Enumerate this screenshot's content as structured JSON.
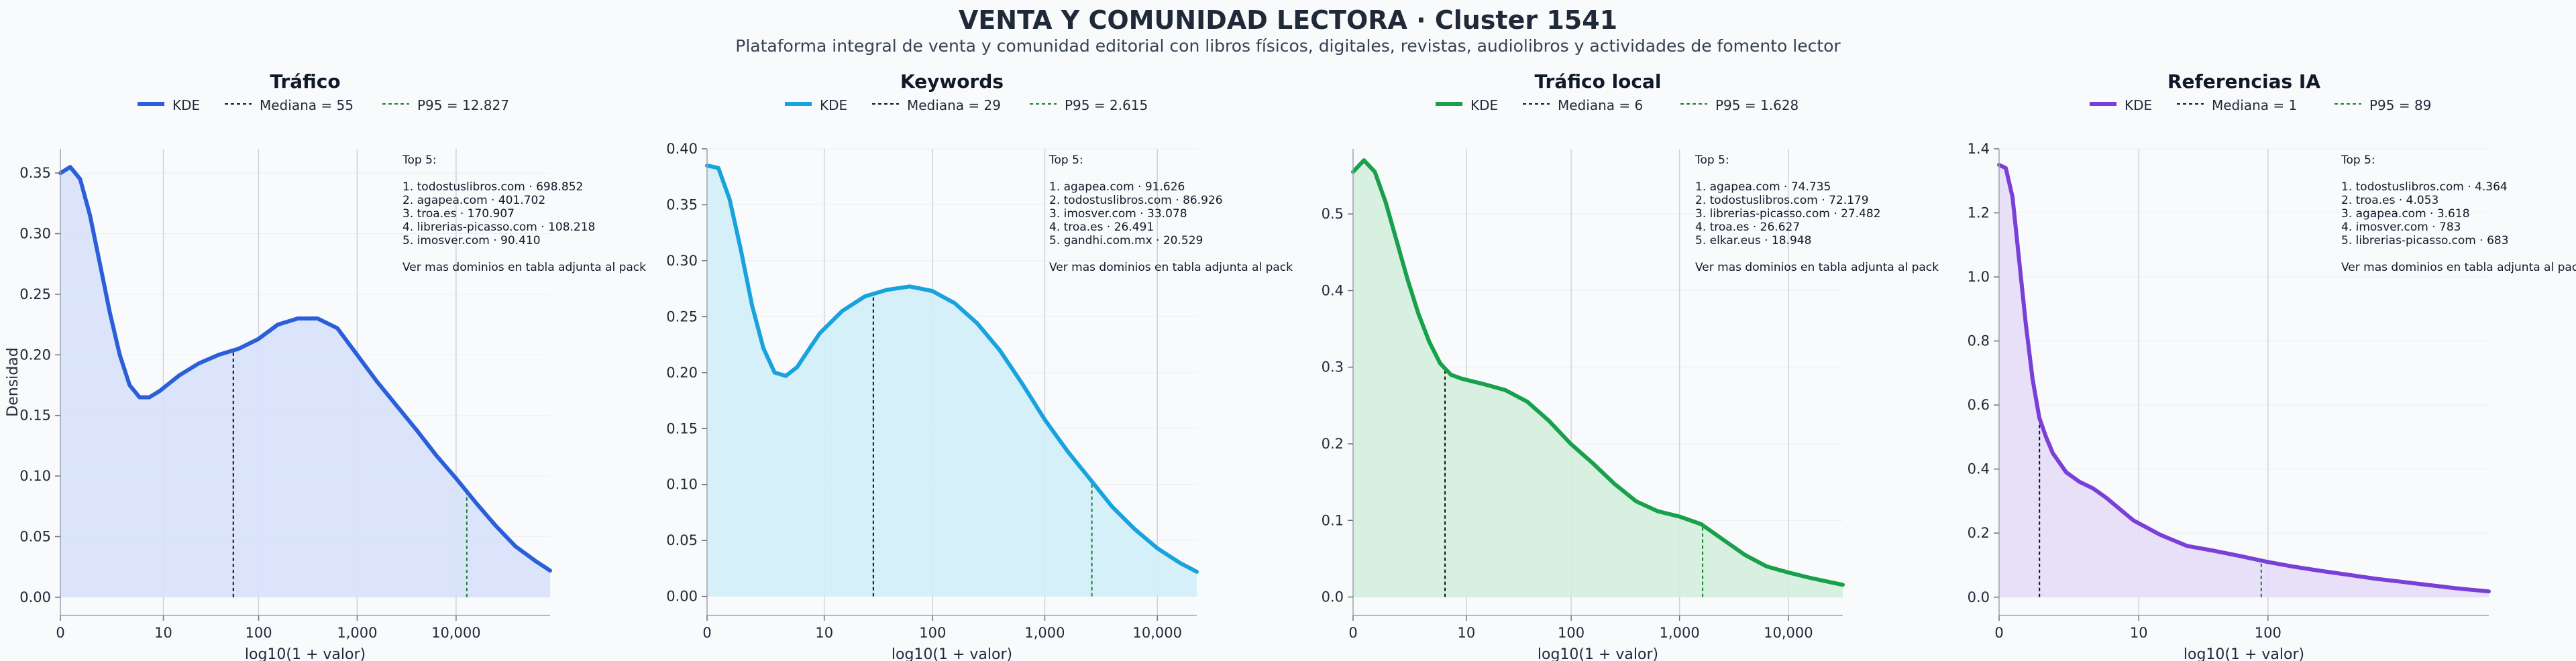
{
  "title": "VENTA Y COMUNIDAD LECTORA · Cluster 1541",
  "subtitle": "Plataforma integral de venta y comunidad editorial con libros físicos, digitales, revistas, audiolibros y actividades de fomento lector",
  "chart_data": [
    {
      "type": "area",
      "title": "Tráfico",
      "xlabel": "log10(1 + valor)",
      "ylabel": "Densidad",
      "color": "#2b5fd9",
      "fill": "#d7e1fb",
      "xlim": [
        0,
        4.95
      ],
      "ylim": [
        -0.015,
        0.37
      ],
      "yticks": [
        0,
        0.05,
        0.1,
        0.15,
        0.2,
        0.25,
        0.3,
        0.35
      ],
      "yticklabels": [
        "0.00",
        "0.05",
        "0.10",
        "0.15",
        "0.20",
        "0.25",
        "0.30",
        "0.35"
      ],
      "xticks": [
        0,
        1.041,
        2.004,
        3.0,
        4.0
      ],
      "xticklabels": [
        "0",
        "10",
        "100",
        "1,000",
        "10,000"
      ],
      "legend": [
        "KDE",
        "Mediana = 55",
        "P95 = 12.827"
      ],
      "median_x": 1.748,
      "p95_x": 4.108,
      "kde": {
        "x": [
          0,
          0.1,
          0.2,
          0.3,
          0.4,
          0.5,
          0.6,
          0.7,
          0.8,
          0.9,
          1.0,
          1.2,
          1.4,
          1.6,
          1.8,
          2.0,
          2.2,
          2.4,
          2.6,
          2.8,
          3.0,
          3.2,
          3.4,
          3.6,
          3.8,
          4.0,
          4.2,
          4.4,
          4.6,
          4.8,
          4.95
        ],
        "y": [
          0.35,
          0.355,
          0.345,
          0.315,
          0.275,
          0.235,
          0.2,
          0.175,
          0.165,
          0.165,
          0.17,
          0.183,
          0.193,
          0.2,
          0.205,
          0.213,
          0.225,
          0.23,
          0.23,
          0.222,
          0.2,
          0.178,
          0.158,
          0.138,
          0.117,
          0.098,
          0.078,
          0.059,
          0.042,
          0.03,
          0.022
        ]
      },
      "annotation": [
        "Top 5:",
        "",
        "1. todostuslibros.com · 698.852",
        "2. agapea.com · 401.702",
        "3. troa.es · 170.907",
        "4. librerias-picasso.com · 108.218",
        "5. imosver.com · 90.410",
        "",
        "Ver mas dominios en tabla adjunta al pack"
      ]
    },
    {
      "type": "area",
      "title": "Keywords",
      "xlabel": "log10(1 + valor)",
      "ylabel": "",
      "color": "#19a3dc",
      "fill": "#d2eefa",
      "xlim": [
        0,
        4.35
      ],
      "ylim": [
        -0.017,
        0.4
      ],
      "yticks": [
        0,
        0.05,
        0.1,
        0.15,
        0.2,
        0.25,
        0.3,
        0.35,
        0.4
      ],
      "yticklabels": [
        "0.00",
        "0.05",
        "0.10",
        "0.15",
        "0.20",
        "0.25",
        "0.30",
        "0.35",
        "0.40"
      ],
      "xticks": [
        0,
        1.041,
        2.004,
        3.0,
        4.0
      ],
      "xticklabels": [
        "0",
        "10",
        "100",
        "1,000",
        "10,000"
      ],
      "legend": [
        "KDE",
        "Mediana = 29",
        "P95 = 2.615"
      ],
      "median_x": 1.477,
      "p95_x": 3.418,
      "kde": {
        "x": [
          0,
          0.1,
          0.2,
          0.3,
          0.4,
          0.5,
          0.6,
          0.7,
          0.8,
          0.9,
          1.0,
          1.2,
          1.4,
          1.6,
          1.8,
          2.0,
          2.2,
          2.4,
          2.6,
          2.8,
          3.0,
          3.2,
          3.4,
          3.6,
          3.8,
          4.0,
          4.2,
          4.35
        ],
        "y": [
          0.385,
          0.383,
          0.355,
          0.31,
          0.26,
          0.222,
          0.2,
          0.197,
          0.205,
          0.22,
          0.235,
          0.255,
          0.268,
          0.274,
          0.277,
          0.273,
          0.262,
          0.244,
          0.22,
          0.19,
          0.158,
          0.13,
          0.105,
          0.08,
          0.06,
          0.043,
          0.03,
          0.022
        ]
      },
      "annotation": [
        "Top 5:",
        "",
        "1. agapea.com · 91.626",
        "2. todostuslibros.com · 86.926",
        "3. imosver.com · 33.078",
        "4. troa.es · 26.491",
        "5. gandhi.com.mx · 20.529",
        "",
        "Ver mas dominios en tabla adjunta al pack"
      ]
    },
    {
      "type": "area",
      "title": "Tráfico local",
      "xlabel": "log10(1 + valor)",
      "ylabel": "",
      "color": "#18a04a",
      "fill": "#d3eedb",
      "xlim": [
        0,
        4.5
      ],
      "ylim": [
        -0.024,
        0.585
      ],
      "yticks": [
        0,
        0.1,
        0.2,
        0.3,
        0.4,
        0.5
      ],
      "yticklabels": [
        "0.0",
        "0.1",
        "0.2",
        "0.3",
        "0.4",
        "0.5"
      ],
      "xticks": [
        0,
        1.041,
        2.004,
        3.0,
        4.0
      ],
      "xticklabels": [
        "0",
        "10",
        "100",
        "1,000",
        "10,000"
      ],
      "legend": [
        "KDE",
        "Mediana = 6",
        "P95 = 1.628"
      ],
      "median_x": 0.845,
      "p95_x": 3.212,
      "kde": {
        "x": [
          0,
          0.1,
          0.2,
          0.3,
          0.4,
          0.5,
          0.6,
          0.7,
          0.8,
          0.9,
          1.0,
          1.2,
          1.4,
          1.6,
          1.8,
          2.0,
          2.2,
          2.4,
          2.6,
          2.8,
          3.0,
          3.2,
          3.4,
          3.6,
          3.8,
          4.0,
          4.2,
          4.4,
          4.5
        ],
        "y": [
          0.555,
          0.57,
          0.555,
          0.515,
          0.465,
          0.415,
          0.37,
          0.333,
          0.305,
          0.29,
          0.285,
          0.278,
          0.27,
          0.255,
          0.23,
          0.2,
          0.175,
          0.148,
          0.125,
          0.112,
          0.105,
          0.095,
          0.075,
          0.055,
          0.04,
          0.032,
          0.025,
          0.019,
          0.016
        ]
      },
      "annotation": [
        "Top 5:",
        "",
        "1. agapea.com · 74.735",
        "2. todostuslibros.com · 72.179",
        "3. librerias-picasso.com · 27.482",
        "4. troa.es · 26.627",
        "5. elkar.eus · 18.948",
        "",
        "Ver mas dominios en tabla adjunta al pack"
      ]
    },
    {
      "type": "area",
      "title": "Referencias IA",
      "xlabel": "log10(1 + valor)",
      "ylabel": "",
      "color": "#7a3fd6",
      "fill": "#e6dcf8",
      "xlim": [
        0,
        3.65
      ],
      "ylim": [
        -0.057,
        1.4
      ],
      "yticks": [
        0,
        0.2,
        0.4,
        0.6,
        0.8,
        1.0,
        1.2,
        1.4
      ],
      "yticklabels": [
        "0.0",
        "0.2",
        "0.4",
        "0.6",
        "0.8",
        "1.0",
        "1.2",
        "1.4"
      ],
      "xticks": [
        0,
        1.041,
        2.004
      ],
      "xticklabels": [
        "0",
        "10",
        "100"
      ],
      "legend": [
        "KDE",
        "Mediana = 1",
        "P95 = 89"
      ],
      "median_x": 0.301,
      "p95_x": 1.954,
      "kde": {
        "x": [
          0,
          0.05,
          0.1,
          0.15,
          0.2,
          0.25,
          0.3,
          0.35,
          0.4,
          0.5,
          0.6,
          0.7,
          0.8,
          0.9,
          1.0,
          1.2,
          1.4,
          1.6,
          1.8,
          2.0,
          2.2,
          2.4,
          2.6,
          2.8,
          3.0,
          3.2,
          3.4,
          3.65
        ],
        "y": [
          1.35,
          1.34,
          1.25,
          1.05,
          0.85,
          0.68,
          0.56,
          0.5,
          0.45,
          0.39,
          0.36,
          0.34,
          0.31,
          0.275,
          0.24,
          0.195,
          0.16,
          0.145,
          0.128,
          0.11,
          0.095,
          0.082,
          0.07,
          0.058,
          0.048,
          0.038,
          0.028,
          0.018
        ]
      },
      "annotation": [
        "Top 5:",
        "",
        "1. todostuslibros.com · 4.364",
        "2. troa.es · 4.053",
        "3. agapea.com · 3.618",
        "4. imosver.com · 783",
        "5. librerias-picasso.com · 683",
        "",
        "Ver mas dominios en tabla adjunta al pack"
      ]
    }
  ]
}
